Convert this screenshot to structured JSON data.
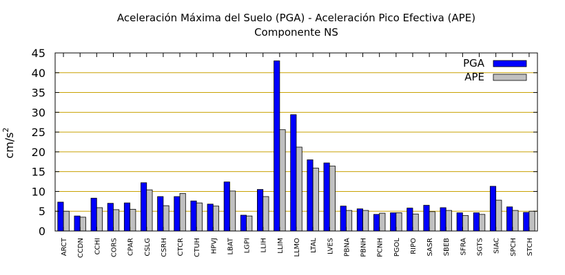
{
  "chart_data": {
    "type": "bar",
    "title": "Aceleración Máxima del Suelo (PGA) -  Aceleración Pico Efectiva (APE)",
    "subtitle": "Componente NS",
    "ylabel": "cm/s",
    "ylabel_superscript": "2",
    "xlabel": "",
    "ylim": [
      0,
      45
    ],
    "yticks": [
      "0",
      "5",
      "10",
      "15",
      "20",
      "25",
      "30",
      "35",
      "40",
      "45"
    ],
    "grid": true,
    "legend_position": "top-right",
    "colors": {
      "PGA": "#0000ff",
      "APE": "#c0c0c0",
      "grid": "#c8a000"
    },
    "categories": [
      "ARCT",
      "CCDN",
      "CCHI",
      "CORS",
      "CPAR",
      "CSLG",
      "CSRH",
      "CTCR",
      "CTUH",
      "HPVJ",
      "LBAT",
      "LGPI",
      "LLIH",
      "LLIM",
      "LLMO",
      "LTAL",
      "LVES",
      "PBNA",
      "PBNH",
      "PCNH",
      "PGOL",
      "RIPO",
      "SASR",
      "SBEB",
      "SFRA",
      "SGTS",
      "SIAC",
      "SPCH",
      "STCH"
    ],
    "series": [
      {
        "name": "PGA",
        "values": [
          7.3,
          3.8,
          8.3,
          7.0,
          7.1,
          12.2,
          8.7,
          8.7,
          7.6,
          6.8,
          12.4,
          4.0,
          10.5,
          43.0,
          29.4,
          18.0,
          17.2,
          6.3,
          5.6,
          4.2,
          4.6,
          5.8,
          6.5,
          5.9,
          4.6,
          4.6,
          11.3,
          6.1,
          4.7
        ]
      },
      {
        "name": "APE",
        "values": [
          5.0,
          3.5,
          5.9,
          5.4,
          5.5,
          10.4,
          6.4,
          9.5,
          7.1,
          6.3,
          10.1,
          3.8,
          8.7,
          25.6,
          21.2,
          15.9,
          16.4,
          5.2,
          5.2,
          4.5,
          4.6,
          4.3,
          4.9,
          5.2,
          3.9,
          4.2,
          7.8,
          5.2,
          5.0
        ]
      }
    ]
  }
}
